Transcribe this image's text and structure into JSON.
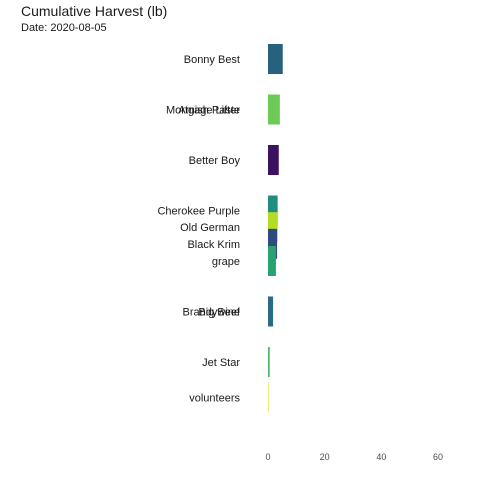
{
  "chart_data": {
    "type": "bar",
    "orientation": "horizontal",
    "title": "Cumulative Harvest (lb)",
    "subtitle": "Date: 2020-08-05",
    "xlabel": "",
    "ylabel": "",
    "xlim": [
      0,
      65
    ],
    "xticks": [
      0,
      20,
      40,
      60
    ],
    "grid": false,
    "legend": "none",
    "bars": [
      {
        "label": "Bonny Best",
        "value": 5.2,
        "rank": 1,
        "color": "#26617E"
      },
      {
        "label": "Amish Paste",
        "value": 4.2,
        "rank": 2,
        "color": "#7ACF52"
      },
      {
        "label": "Mortgage Lifter",
        "value": 4.0,
        "rank": 2,
        "color": "#6BCB56"
      },
      {
        "label": "Better Boy",
        "value": 3.8,
        "rank": 3,
        "color": "#3B1260"
      },
      {
        "label": "Cherokee Purple",
        "value": 3.4,
        "rank": 4,
        "color": "#218D81"
      },
      {
        "label": "Old German",
        "value": 3.4,
        "rank": 4.33,
        "color": "#B3DC22"
      },
      {
        "label": "Black Krim",
        "value": 3.2,
        "rank": 4.66,
        "color": "#2E4A80"
      },
      {
        "label": "grape",
        "value": 2.8,
        "rank": 5,
        "color": "#2AA26F"
      },
      {
        "label": "Big Beef",
        "value": 1.8,
        "rank": 6,
        "color": "#2A7A83"
      },
      {
        "label": "Brandywine",
        "value": 1.7,
        "rank": 6,
        "color": "#2A6A85"
      },
      {
        "label": "Jet Star",
        "value": 0.6,
        "rank": 7,
        "color": "#4CB568"
      },
      {
        "label": "volunteers",
        "value": 0.2,
        "rank": 7.7,
        "color": "#E9DE26"
      }
    ]
  }
}
